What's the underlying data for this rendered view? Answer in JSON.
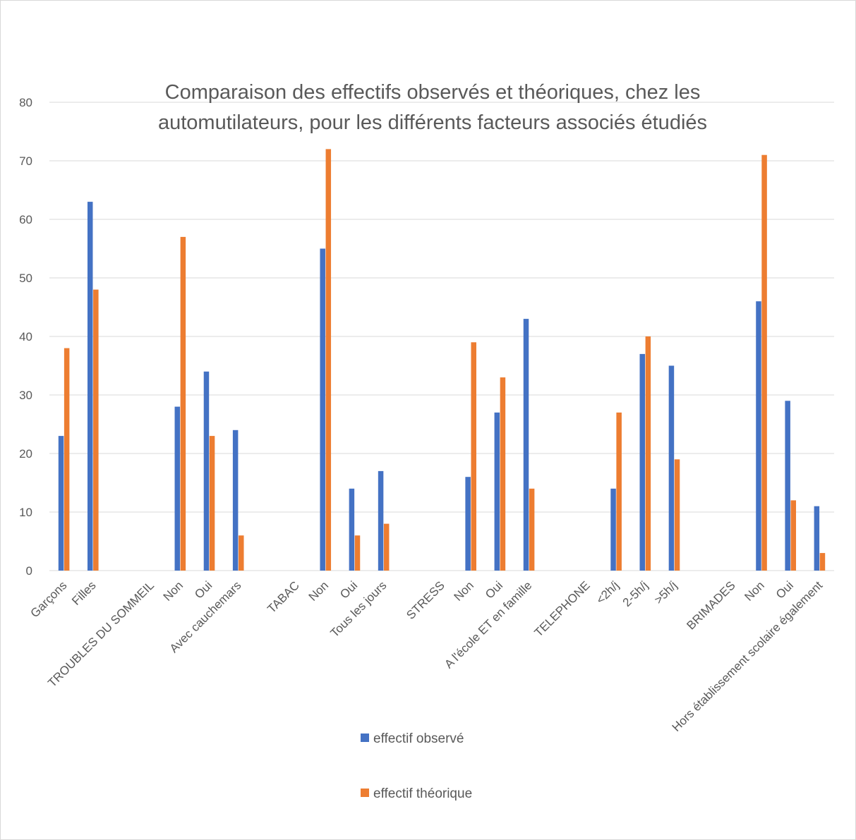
{
  "chart_data": {
    "type": "bar",
    "title": [
      "Comparaison des effectifs observés et théoriques, chez les",
      "automutilateurs, pour les différents facteurs associés étudiés"
    ],
    "xlabel": "",
    "ylabel": "",
    "ylim": [
      0,
      80
    ],
    "yticks": [
      0,
      10,
      20,
      30,
      40,
      50,
      60,
      70,
      80
    ],
    "grid": true,
    "legend_position": "bottom",
    "categories": [
      "Garçons",
      "Filles",
      "",
      "TROUBLES DU SOMMEIL",
      "Non",
      "Oui",
      "Avec cauchemars",
      "",
      "TABAC",
      "Non",
      "Oui",
      "Tous les jours",
      "",
      "STRESS",
      "Non",
      "Oui",
      "A l'école ET en famille",
      "",
      "TELEPHONE",
      "<2h/j",
      "2-5h/j",
      ">5h/j",
      "",
      "BRIMADES",
      "Non",
      "Oui",
      "Hors établissement scolaire également"
    ],
    "series": [
      {
        "name": "effectif observé",
        "color": "#4472c4",
        "values": [
          23,
          63,
          null,
          null,
          28,
          34,
          24,
          null,
          null,
          55,
          14,
          17,
          null,
          null,
          16,
          27,
          43,
          null,
          null,
          14,
          37,
          35,
          null,
          null,
          46,
          29,
          11
        ]
      },
      {
        "name": "effectif théorique",
        "color": "#ed7d31",
        "values": [
          38,
          48,
          null,
          null,
          57,
          23,
          6,
          null,
          null,
          72,
          6,
          8,
          null,
          null,
          39,
          33,
          14,
          null,
          null,
          27,
          40,
          19,
          null,
          null,
          71,
          12,
          3
        ]
      }
    ]
  }
}
